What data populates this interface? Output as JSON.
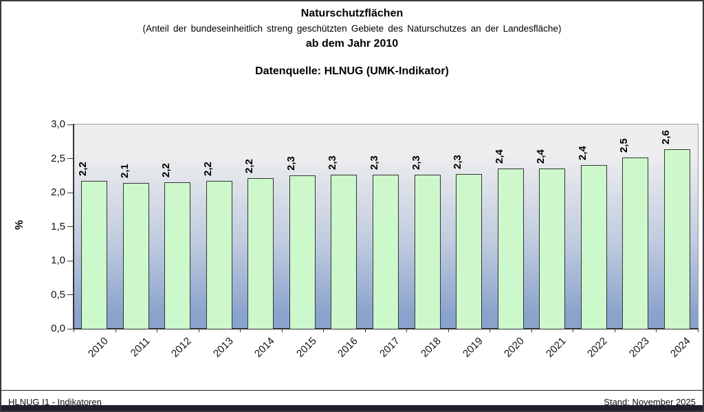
{
  "header": {
    "title": "Naturschutzflächen",
    "subtitle": "(Anteil der bundeseinheitlich streng geschützten Gebiete des Naturschutzes an der Landesfläche)",
    "period": "ab dem Jahr 2010",
    "source": "Datenquelle: HLNUG (UMK-Indikator)"
  },
  "chart_data": {
    "type": "bar",
    "title": "Naturschutzflächen ab dem Jahr 2010",
    "categories": [
      "2010",
      "2011",
      "2012",
      "2013",
      "2014",
      "2015",
      "2016",
      "2017",
      "2018",
      "2019",
      "2020",
      "2021",
      "2022",
      "2023",
      "2024"
    ],
    "values": [
      2.17,
      2.14,
      2.15,
      2.17,
      2.21,
      2.25,
      2.26,
      2.26,
      2.26,
      2.27,
      2.35,
      2.35,
      2.4,
      2.52,
      2.64
    ],
    "bar_labels": [
      "2,2",
      "2,1",
      "2,2",
      "2,2",
      "2,2",
      "2,3",
      "2,3",
      "2,3",
      "2,3",
      "2,3",
      "2,4",
      "2,4",
      "2,4",
      "2,5",
      "2,6"
    ],
    "xlabel": "",
    "ylabel": "%",
    "ylim": [
      0,
      3
    ],
    "ytick_step": 0.5,
    "ytick_labels": [
      "0,0",
      "0,5",
      "1,0",
      "1,5",
      "2,0",
      "2,5",
      "3,0"
    ],
    "grid": false,
    "legend": "none",
    "bar_fill": "#cdf8cc",
    "bar_border": "#333333",
    "plot_bg_top": "#eeeeee",
    "plot_bg_mid": "#bfcbdf",
    "plot_bg_bottom": "#8aa3cc"
  },
  "footer": {
    "left": "HLNUG I1 - Indikatoren",
    "right": "Stand: November 2025"
  },
  "colors": {
    "page_border": "#3a3a3a",
    "axis": "#333333",
    "bottom_bar": "#1d2130"
  }
}
